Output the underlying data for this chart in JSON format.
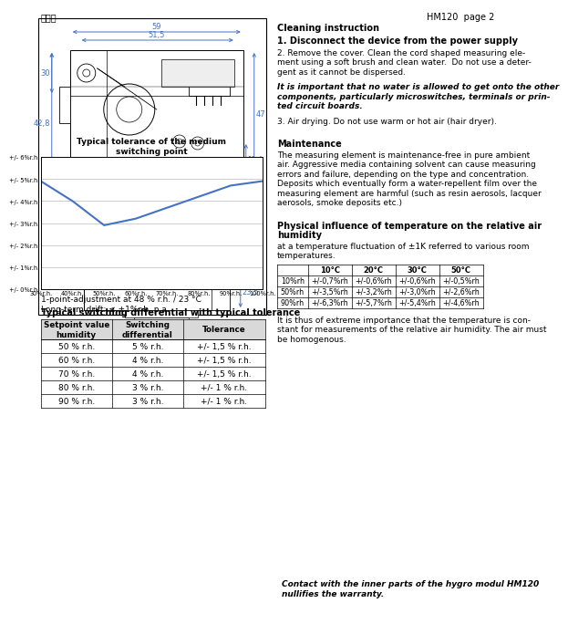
{
  "title_header": "HM120  page 2",
  "chinese_title": "接线图",
  "cleaning_title": "Cleaning instruction",
  "cleaning_1_bold": "1. Disconnect the device from the power supply",
  "cleaning_2_line1": "2. Remove the cover. Clean the cord shaped measuring ele-",
  "cleaning_2_line2": "ment using a soft brush and clean water.  Do not use a deter-",
  "cleaning_2_line3": "gent as it cannot be dispersed.",
  "cleaning_italic_line1": "It is important that no water is allowed to get onto the other",
  "cleaning_italic_line2": "components, particularly microswitches, terminals or prin-",
  "cleaning_italic_line3": "ted circuit boards.",
  "cleaning_3": "3. Air drying. Do not use warm or hot air (hair dryer).",
  "maintenance_title": "Maintenance",
  "maint_line1": "The measuring element is maintenance-free in pure ambient",
  "maint_line2": "air. Aggressive media containing solvent can cause measuring",
  "maint_line3": "errors and failure, depending on the type and concentration.",
  "maint_line4": "Deposits which eventually form a water-repellent film over the",
  "maint_line5": "measuring element are harmful (such as resin aerosols, lacquer",
  "maint_line6": "aerosols, smoke deposits etc.)",
  "physical_title1": "Physical influence of temperature on the relative air",
  "physical_title2": "humidity",
  "physical_text1": "at a temperature fluctuation of ±1K referred to various room",
  "physical_text2": "temperatures.",
  "temp_table_headers": [
    "",
    "10°C",
    "20°C",
    "30°C",
    "50°C"
  ],
  "temp_table_rows": [
    [
      "10%rh",
      "+/-0,7%rh",
      "+/-0,6%rh",
      "+/-0,6%rh",
      "+/-0,5%rh"
    ],
    [
      "50%rh",
      "+/-3,5%rh",
      "+/-3,2%rh",
      "+/-3,0%rh",
      "+/-2,6%rh"
    ],
    [
      "90%rh",
      "+/-6,3%rh",
      "+/-5,7%rh",
      "+/-5,4%rh",
      "+/-4,6%rh"
    ]
  ],
  "extreme_line1": "It is thus of extreme importance that the temperature is con-",
  "extreme_line2": "stant for measurements of the relative air humidity. The air must",
  "extreme_line3": "be homogenous.",
  "contact_line1": "Contact with the inner parts of the hygro modul HM120",
  "contact_line2": "nullifies the warranty.",
  "chart_title1": "Typical tolerance of the medium",
  "chart_title2": "switching point",
  "chart_x": [
    30,
    40,
    50,
    60,
    70,
    80,
    90,
    100
  ],
  "chart_y": [
    4.9,
    4.0,
    2.9,
    3.2,
    3.7,
    4.2,
    4.7,
    4.9
  ],
  "chart_ytick_labels": [
    "+/- 0%r.h.",
    "+/- 1%r.h.",
    "+/- 2%r.h.",
    "+/- 3%r.h.",
    "+/- 4%r.h.",
    "+/- 5%r.h.",
    "+/- 6%r.h."
  ],
  "chart_xtick_labels": [
    "30%r.h.",
    "40%r.h.",
    "50%r.h.",
    "60%r.h.",
    "70%r.h.",
    "80%r.h.",
    "90%r.h.",
    "100%r.h."
  ],
  "chart_note1": "1-point-adjustment at 48 % r.h. / 23 °C",
  "chart_note2": "Long-term drift: ≤ ±1%r.h. p.a.",
  "switch_table_title": "Typical switching differential with typical tolerance",
  "switch_table_headers": [
    "Setpoint value\nhumidity",
    "Switching\ndifferential",
    "Tolerance"
  ],
  "switch_table_rows": [
    [
      "50 % r.h.",
      "5 % r.h.",
      "+/- 1,5 % r.h."
    ],
    [
      "60 % r.h.",
      "4 % r.h.",
      "+/- 1,5 % r.h."
    ],
    [
      "70 % r.h.",
      "4 % r.h.",
      "+/- 1,5 % r.h."
    ],
    [
      "80 % r.h.",
      "3 % r.h.",
      "+/- 1 % r.h."
    ],
    [
      "90 % r.h.",
      "3 % r.h.",
      "+/- 1 % r.h."
    ]
  ],
  "line_color": "#4472C4",
  "dim_color": "#4472C4",
  "bg_color": "#ffffff"
}
